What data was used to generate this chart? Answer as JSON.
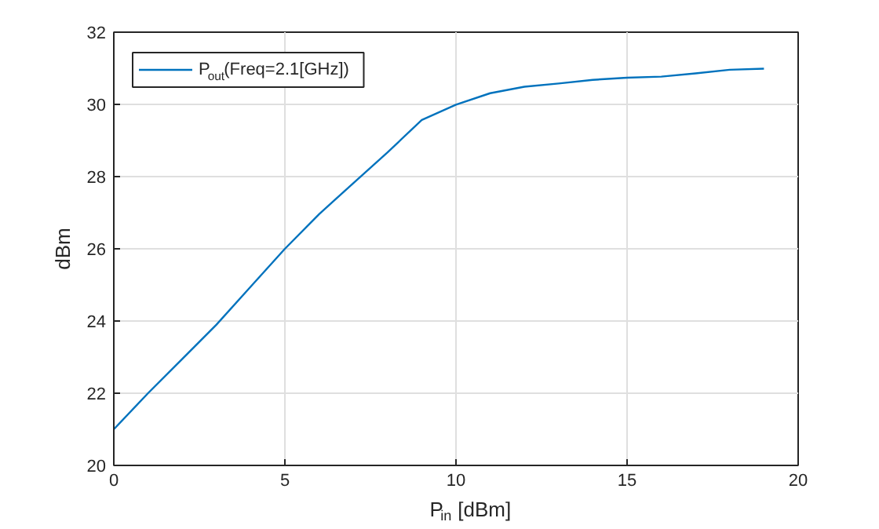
{
  "chart_data": {
    "type": "line",
    "xlabel": "P$_{in}$ [dBm]",
    "ylabel": "dBm",
    "x": [
      0,
      1,
      2,
      3,
      4,
      5,
      6,
      7,
      8,
      9,
      10,
      11,
      12,
      13,
      14,
      15,
      16,
      17,
      18,
      19
    ],
    "series": [
      {
        "name": "P$_{out}$(Freq=2.1[GHz])",
        "color": "#0072bd",
        "values": [
          21.0,
          22.0,
          22.95,
          23.9,
          24.95,
          26.0,
          26.96,
          27.82,
          28.67,
          29.57,
          29.99,
          30.31,
          30.49,
          30.58,
          30.68,
          30.74,
          30.77,
          30.86,
          30.96,
          30.99
        ]
      }
    ],
    "xlim": [
      0,
      20
    ],
    "ylim": [
      20,
      32
    ],
    "xticks": [
      0,
      5,
      10,
      15,
      20
    ],
    "yticks": [
      20,
      22,
      24,
      26,
      28,
      30,
      32
    ],
    "grid": true,
    "legend": "top left",
    "line_style": "solid",
    "marker": "none"
  }
}
